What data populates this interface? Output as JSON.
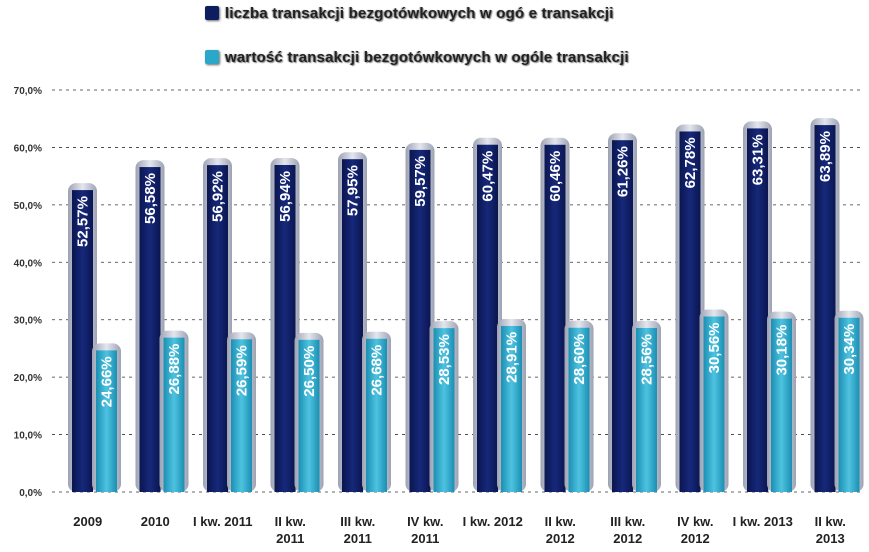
{
  "legend": {
    "series1": "liczba transakcji bezgotówkowych w ogó e transakcji",
    "series2": "wartość transakcji bezgotówkowych w ogóle transakcji"
  },
  "colors": {
    "series1": "#0d1e5e",
    "series2": "#2aa7c9",
    "shell": "#c9ccd6",
    "grid": "#333333"
  },
  "chart_data": {
    "type": "bar",
    "ylim": [
      0,
      70
    ],
    "ytick_values": [
      0,
      10,
      20,
      30,
      40,
      50,
      60,
      70
    ],
    "ytick_labels": [
      "0,0%",
      "10,0%",
      "20,0%",
      "30,0%",
      "40,0%",
      "50,0%",
      "60,0%",
      "70,0%"
    ],
    "categories": [
      [
        "2009"
      ],
      [
        "2010"
      ],
      [
        "I kw. 2011"
      ],
      [
        "II kw.",
        "2011"
      ],
      [
        "III kw.",
        "2011"
      ],
      [
        "IV kw.",
        "2011"
      ],
      [
        "I kw. 2012"
      ],
      [
        "II kw.",
        "2012"
      ],
      [
        "III kw.",
        "2012"
      ],
      [
        "IV kw.",
        "2012"
      ],
      [
        "I kw. 2013"
      ],
      [
        "II kw.",
        "2013"
      ]
    ],
    "series": [
      {
        "name": "liczba transakcji bezgotówkowych w ogó e transakcji",
        "values": [
          52.57,
          56.58,
          56.92,
          56.94,
          57.95,
          59.57,
          60.47,
          60.46,
          61.26,
          62.78,
          63.31,
          63.89
        ],
        "labels": [
          "52,57%",
          "56,58%",
          "56,92%",
          "56,94%",
          "57,95%",
          "59,57%",
          "60,47%",
          "60,46%",
          "61,26%",
          "62,78%",
          "63,31%",
          "63,89%"
        ]
      },
      {
        "name": "wartość transakcji bezgotówkowych w ogóle transakcji",
        "values": [
          24.66,
          26.88,
          26.59,
          26.5,
          26.68,
          28.53,
          28.91,
          28.6,
          28.56,
          30.56,
          30.18,
          30.34
        ],
        "labels": [
          "24,66%",
          "26,88%",
          "26,59%",
          "26,50%",
          "26,68%",
          "28,53%",
          "28,91%",
          "28,60%",
          "28,56%",
          "30,56%",
          "30,18%",
          "30,34%"
        ]
      }
    ]
  }
}
